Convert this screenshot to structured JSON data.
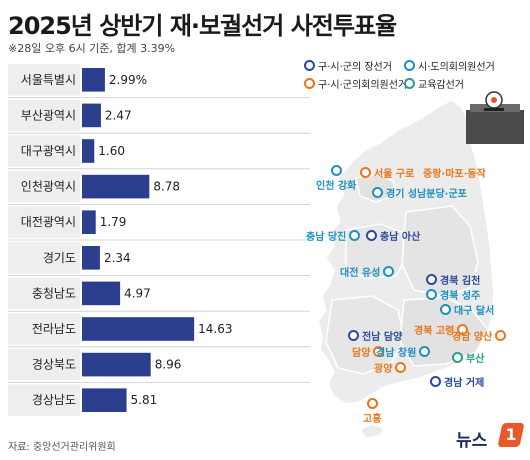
{
  "title": "2025년 상반기 재·보궐선거 사전투표율",
  "subtitle": "※28일 오후 6시 기준, 합계 3.39%",
  "source": "자료: 중앙선거관리위원회",
  "logo": {
    "text": "뉴스",
    "mark": "1"
  },
  "colors": {
    "bar": "#2c3f8f",
    "label_bg": "#eeeeee",
    "map_land": "#ececec",
    "map_stroke": "#ffffff",
    "gu_si_gun_head": "#2b4a9c",
    "si_do_council": "#1e8fc0",
    "gu_si_gun_council": "#e8761b",
    "education": "#2a9d8f"
  },
  "legend": [
    {
      "label": "구·시·군의 장선거",
      "color_key": "gu_si_gun_head"
    },
    {
      "label": "시·도의회의원선거",
      "color_key": "si_do_council"
    },
    {
      "label": "구·시·군의회의원선거",
      "color_key": "gu_si_gun_council"
    },
    {
      "label": "교육감선거",
      "color_key": "education"
    }
  ],
  "chart_data": {
    "type": "bar",
    "orientation": "horizontal",
    "categories": [
      "서울특별시",
      "부산광역시",
      "대구광역시",
      "인천광역시",
      "대전광역시",
      "경기도",
      "충청남도",
      "전라남도",
      "경상북도",
      "경상남도"
    ],
    "values": [
      2.99,
      2.47,
      1.6,
      8.78,
      1.79,
      2.34,
      4.97,
      14.63,
      8.96,
      5.81
    ],
    "value_labels": [
      "2.99%",
      "2.47",
      "1.60",
      "8.78",
      "1.79",
      "2.34",
      "4.97",
      "14.63",
      "8.96",
      "5.81"
    ],
    "xlim": [
      0,
      30
    ]
  },
  "map_labels": [
    {
      "text": "인천 강화",
      "color_key": "si_do_council"
    },
    {
      "text": "서울 구로",
      "color_key": "gu_si_gun_council"
    },
    {
      "text": "중랑·마포·동작",
      "color_key": "gu_si_gun_council"
    },
    {
      "text": "경기 성남분당·군포",
      "color_key": "si_do_council"
    },
    {
      "text": "충남 당진",
      "color_key": "si_do_council"
    },
    {
      "text": "충남 아산",
      "color_key": "gu_si_gun_head"
    },
    {
      "text": "대전 유성",
      "color_key": "si_do_council"
    },
    {
      "text": "경북 김천",
      "color_key": "gu_si_gun_head"
    },
    {
      "text": "경북 성주",
      "color_key": "si_do_council"
    },
    {
      "text": "대구 달서",
      "color_key": "si_do_council"
    },
    {
      "text": "경북 고령",
      "color_key": "gu_si_gun_council"
    },
    {
      "text": "전남 담양",
      "color_key": "gu_si_gun_head"
    },
    {
      "text": "담양",
      "color_key": "gu_si_gun_council"
    },
    {
      "text": "경남 창원",
      "color_key": "si_do_council"
    },
    {
      "text": "경남 양산",
      "color_key": "gu_si_gun_council"
    },
    {
      "text": "부산",
      "color_key": "education"
    },
    {
      "text": "광양",
      "color_key": "gu_si_gun_council"
    },
    {
      "text": "경남 거제",
      "color_key": "gu_si_gun_head"
    },
    {
      "text": "고흥",
      "color_key": "gu_si_gun_council"
    }
  ]
}
